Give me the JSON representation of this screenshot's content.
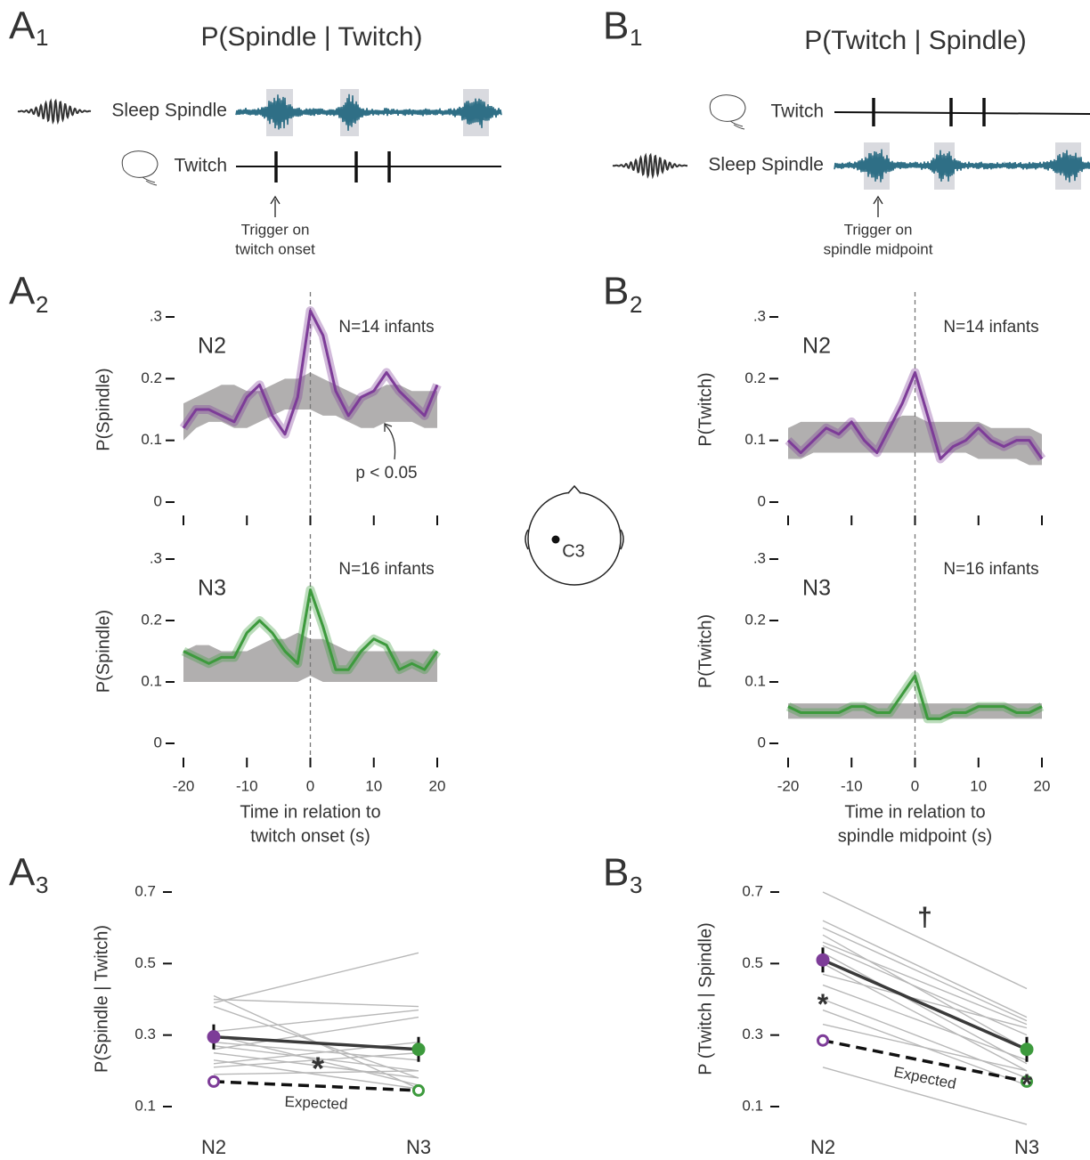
{
  "panels": [
    {
      "letter": "A",
      "sub": "1"
    },
    {
      "letter": "B",
      "sub": "1"
    },
    {
      "letter": "A",
      "sub": "2"
    },
    {
      "letter": "B",
      "sub": "2"
    },
    {
      "letter": "A",
      "sub": "3"
    },
    {
      "letter": "B",
      "sub": "3"
    }
  ],
  "schematics": [
    {
      "title": "P(Spindle | Twitch)",
      "rows": [
        "Sleep Spindle",
        "Twitch"
      ],
      "trigger": [
        "Trigger on",
        "twitch onset"
      ]
    },
    {
      "title": "P(Twitch | Spindle)",
      "rows": [
        "Twitch",
        "Sleep Spindle"
      ],
      "trigger": [
        "Trigger on",
        "spindle midpoint"
      ]
    }
  ],
  "electrode": "C3",
  "chart_data": [
    {
      "type": "line",
      "title": "N2",
      "annotation": "N=14 infants",
      "note": "p < 0.05",
      "ylabel": "P(Spindle)",
      "xlim": [
        -20,
        20
      ],
      "xticks": [
        -20,
        -10,
        0,
        10,
        20
      ],
      "show_xtick_labels": false,
      "ylim": [
        0,
        0.3
      ],
      "yticks": [
        0,
        0.1,
        0.2,
        {
          "value": 0.3,
          "label": ".3"
        }
      ],
      "zero_line": true,
      "x": [
        -20,
        -18,
        -16,
        -14,
        -12,
        -10,
        -8,
        -6,
        -4,
        -2,
        0,
        2,
        4,
        6,
        8,
        10,
        12,
        14,
        16,
        18,
        20
      ],
      "band": {
        "color": "#a9a6a6",
        "low": [
          0.1,
          0.12,
          0.13,
          0.13,
          0.12,
          0.12,
          0.13,
          0.14,
          0.15,
          0.15,
          0.15,
          0.14,
          0.14,
          0.13,
          0.12,
          0.12,
          0.13,
          0.13,
          0.13,
          0.12,
          0.12
        ],
        "high": [
          0.16,
          0.17,
          0.18,
          0.19,
          0.19,
          0.18,
          0.18,
          0.19,
          0.2,
          0.2,
          0.21,
          0.2,
          0.19,
          0.18,
          0.17,
          0.18,
          0.19,
          0.19,
          0.18,
          0.18,
          0.18
        ]
      },
      "series": [
        {
          "color": "#7d3c98",
          "values": [
            0.12,
            0.15,
            0.15,
            0.14,
            0.13,
            0.17,
            0.19,
            0.14,
            0.11,
            0.17,
            0.31,
            0.27,
            0.18,
            0.14,
            0.17,
            0.18,
            0.21,
            0.18,
            0.16,
            0.14,
            0.19
          ]
        }
      ]
    },
    {
      "type": "line",
      "title": "N3",
      "annotation": "N=16 infants",
      "ylabel": "P(Spindle)",
      "xlabel": [
        "Time in relation to",
        "twitch onset (s)"
      ],
      "xlim": [
        -20,
        20
      ],
      "xticks": [
        -20,
        -10,
        0,
        10,
        20
      ],
      "show_xtick_labels": true,
      "ylim": [
        0,
        0.3
      ],
      "yticks": [
        0,
        0.1,
        0.2,
        {
          "value": 0.3,
          "label": ".3"
        }
      ],
      "zero_line": true,
      "x": [
        -20,
        -18,
        -16,
        -14,
        -12,
        -10,
        -8,
        -6,
        -4,
        -2,
        0,
        2,
        4,
        6,
        8,
        10,
        12,
        14,
        16,
        18,
        20
      ],
      "band": {
        "color": "#a9a6a6",
        "low": [
          0.1,
          0.1,
          0.1,
          0.1,
          0.1,
          0.1,
          0.1,
          0.1,
          0.1,
          0.1,
          0.11,
          0.1,
          0.1,
          0.1,
          0.1,
          0.1,
          0.1,
          0.1,
          0.1,
          0.1,
          0.1
        ],
        "high": [
          0.15,
          0.16,
          0.16,
          0.15,
          0.15,
          0.15,
          0.16,
          0.17,
          0.17,
          0.18,
          0.17,
          0.17,
          0.16,
          0.15,
          0.15,
          0.15,
          0.15,
          0.15,
          0.15,
          0.15,
          0.15
        ]
      },
      "series": [
        {
          "color": "#3d9a3d",
          "values": [
            0.15,
            0.14,
            0.13,
            0.14,
            0.14,
            0.18,
            0.2,
            0.18,
            0.15,
            0.13,
            0.25,
            0.19,
            0.12,
            0.12,
            0.15,
            0.17,
            0.16,
            0.12,
            0.13,
            0.12,
            0.15
          ]
        }
      ]
    },
    {
      "type": "line",
      "title": "N2",
      "annotation": "N=14 infants",
      "ylabel": "P(Twitch)",
      "xlim": [
        -20,
        20
      ],
      "xticks": [
        -20,
        -10,
        0,
        10,
        20
      ],
      "show_xtick_labels": false,
      "ylim": [
        0,
        0.3
      ],
      "yticks": [
        0,
        0.1,
        0.2,
        {
          "value": 0.3,
          "label": ".3"
        }
      ],
      "zero_line": true,
      "x": [
        -20,
        -18,
        -16,
        -14,
        -12,
        -10,
        -8,
        -6,
        -4,
        -2,
        0,
        2,
        4,
        6,
        8,
        10,
        12,
        14,
        16,
        18,
        20
      ],
      "band": {
        "color": "#a9a6a6",
        "low": [
          0.07,
          0.07,
          0.08,
          0.08,
          0.08,
          0.08,
          0.08,
          0.08,
          0.08,
          0.08,
          0.08,
          0.08,
          0.08,
          0.08,
          0.08,
          0.07,
          0.07,
          0.07,
          0.07,
          0.06,
          0.06
        ],
        "high": [
          0.12,
          0.13,
          0.13,
          0.13,
          0.13,
          0.13,
          0.13,
          0.13,
          0.13,
          0.14,
          0.14,
          0.13,
          0.13,
          0.13,
          0.13,
          0.13,
          0.12,
          0.12,
          0.12,
          0.12,
          0.11
        ]
      },
      "series": [
        {
          "color": "#7d3c98",
          "values": [
            0.1,
            0.08,
            0.1,
            0.12,
            0.11,
            0.13,
            0.1,
            0.08,
            0.12,
            0.16,
            0.21,
            0.14,
            0.07,
            0.09,
            0.1,
            0.12,
            0.1,
            0.09,
            0.1,
            0.1,
            0.07
          ]
        }
      ]
    },
    {
      "type": "line",
      "title": "N3",
      "annotation": "N=16 infants",
      "ylabel": "P(Twitch)",
      "xlabel": [
        "Time in relation to",
        "spindle midpoint (s)"
      ],
      "xlim": [
        -20,
        20
      ],
      "xticks": [
        -20,
        -10,
        0,
        10,
        20
      ],
      "show_xtick_labels": true,
      "ylim": [
        0,
        0.3
      ],
      "yticks": [
        0,
        0.1,
        0.2,
        {
          "value": 0.3,
          "label": ".3"
        }
      ],
      "zero_line": true,
      "x": [
        -20,
        -18,
        -16,
        -14,
        -12,
        -10,
        -8,
        -6,
        -4,
        -2,
        0,
        2,
        4,
        6,
        8,
        10,
        12,
        14,
        16,
        18,
        20
      ],
      "band": {
        "color": "#a9a6a6",
        "low": [
          0.04,
          0.04,
          0.04,
          0.04,
          0.04,
          0.04,
          0.04,
          0.04,
          0.04,
          0.04,
          0.04,
          0.04,
          0.04,
          0.04,
          0.04,
          0.04,
          0.04,
          0.04,
          0.04,
          0.04,
          0.04
        ],
        "high": [
          0.065,
          0.065,
          0.065,
          0.065,
          0.065,
          0.065,
          0.065,
          0.065,
          0.065,
          0.065,
          0.065,
          0.065,
          0.065,
          0.065,
          0.065,
          0.065,
          0.065,
          0.065,
          0.065,
          0.065,
          0.065
        ]
      },
      "series": [
        {
          "color": "#3d9a3d",
          "values": [
            0.06,
            0.05,
            0.05,
            0.05,
            0.05,
            0.06,
            0.06,
            0.05,
            0.05,
            0.08,
            0.11,
            0.04,
            0.04,
            0.05,
            0.05,
            0.06,
            0.06,
            0.06,
            0.05,
            0.05,
            0.06
          ]
        }
      ]
    },
    {
      "type": "slope",
      "ylabel": "P(Spindle | Twitch)",
      "categories": [
        "N2",
        "N3"
      ],
      "ylim": [
        0.1,
        0.7
      ],
      "yticks": [
        0.1,
        0.3,
        0.5,
        0.7
      ],
      "significance": "*",
      "subjects": {
        "color": "#b8b8b8",
        "values": [
          [
            0.41,
            0.15
          ],
          [
            0.4,
            0.38
          ],
          [
            0.39,
            0.53
          ],
          [
            0.31,
            0.37
          ],
          [
            0.3,
            0.16
          ],
          [
            0.28,
            0.23
          ],
          [
            0.27,
            0.2
          ],
          [
            0.25,
            0.18
          ],
          [
            0.23,
            0.15
          ],
          [
            0.21,
            0.25
          ],
          [
            0.19,
            0.2
          ],
          [
            0.38,
            0.18
          ],
          [
            0.22,
            0.28
          ],
          [
            0.26,
            0.35
          ]
        ]
      },
      "observed": {
        "line_color": "#3a3a3a",
        "colors": [
          "#7d3c98",
          "#3d9a3d"
        ],
        "values": [
          0.295,
          0.26
        ]
      },
      "expected": {
        "label": "Expected",
        "values": [
          0.17,
          0.145
        ]
      }
    },
    {
      "type": "slope",
      "ylabel": "P (Twitch | Spindle)",
      "categories": [
        "N2",
        "N3"
      ],
      "ylim": [
        0.1,
        0.7
      ],
      "yticks": [
        0.1,
        0.3,
        0.5,
        0.7
      ],
      "significance": "†",
      "stars": [
        "*",
        "*"
      ],
      "subjects": {
        "color": "#b8b8b8",
        "values": [
          [
            0.7,
            0.43
          ],
          [
            0.62,
            0.35
          ],
          [
            0.6,
            0.34
          ],
          [
            0.58,
            0.26
          ],
          [
            0.56,
            0.33
          ],
          [
            0.53,
            0.22
          ],
          [
            0.5,
            0.2
          ],
          [
            0.47,
            0.32
          ],
          [
            0.44,
            0.23
          ],
          [
            0.4,
            0.18
          ],
          [
            0.37,
            0.16
          ],
          [
            0.21,
            0.05
          ],
          [
            0.33,
            0.2
          ],
          [
            0.55,
            0.3
          ]
        ]
      },
      "observed": {
        "line_color": "#3a3a3a",
        "colors": [
          "#7d3c98",
          "#3d9a3d"
        ],
        "values": [
          0.51,
          0.26
        ]
      },
      "expected": {
        "label": "Expected",
        "values": [
          0.285,
          0.17
        ]
      }
    }
  ]
}
